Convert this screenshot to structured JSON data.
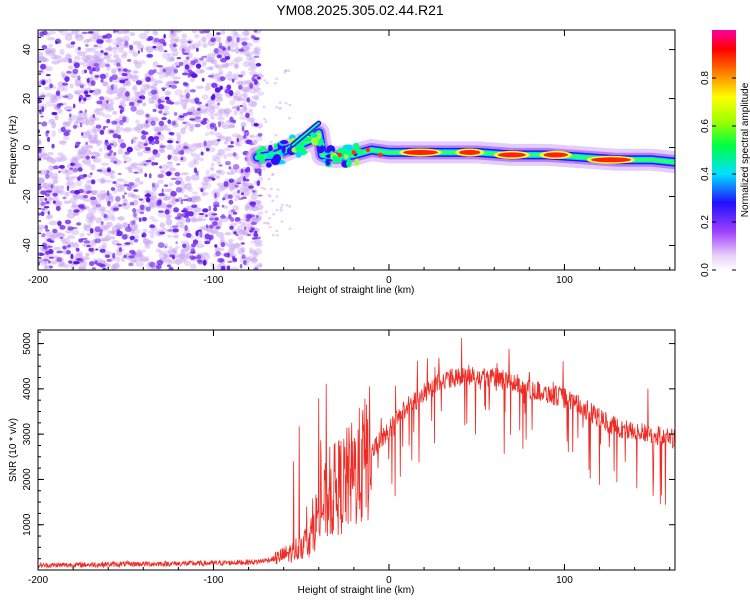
{
  "title": "YM08.2025.305.02.44.R21",
  "colors": {
    "frame": "#000000",
    "snr_line": "#ee2b24",
    "speckle": "#7a2cf0",
    "background": "#ffffff"
  },
  "chart_data": [
    {
      "type": "heatmap",
      "name": "spectrogram",
      "xlabel": "Height of straight line (km)",
      "ylabel": "Frequency (Hz)",
      "xlim": [
        -200,
        163
      ],
      "ylim": [
        -50,
        48
      ],
      "x_ticks": [
        -200,
        -100,
        0,
        100
      ],
      "x_tick_labels": [
        "-200",
        "-100",
        "0",
        "100"
      ],
      "y_ticks": [
        -40,
        -20,
        0,
        20,
        40
      ],
      "y_tick_labels": [
        "-40",
        "-20",
        "0",
        "20",
        "40"
      ],
      "noise_region_km": [
        -200,
        -73
      ],
      "signal_trace": [
        {
          "x": -75,
          "y": -4
        },
        {
          "x": -65,
          "y": -3
        },
        {
          "x": -55,
          "y": 0
        },
        {
          "x": -45,
          "y": 3
        },
        {
          "x": -40,
          "y": 6
        },
        {
          "x": -38,
          "y": -3
        },
        {
          "x": -30,
          "y": -4
        },
        {
          "x": -20,
          "y": -3
        },
        {
          "x": -10,
          "y": -1
        },
        {
          "x": 0,
          "y": -2
        },
        {
          "x": 10,
          "y": -2
        },
        {
          "x": 30,
          "y": -2
        },
        {
          "x": 50,
          "y": -2
        },
        {
          "x": 70,
          "y": -3
        },
        {
          "x": 90,
          "y": -3
        },
        {
          "x": 110,
          "y": -4
        },
        {
          "x": 130,
          "y": -5
        },
        {
          "x": 150,
          "y": -5
        },
        {
          "x": 163,
          "y": -6
        }
      ],
      "colorbar": {
        "label": "Normalized spectral amplitude",
        "range": [
          0,
          1
        ],
        "ticks": [
          0.0,
          0.2,
          0.4,
          0.6,
          0.8
        ],
        "tick_labels": [
          "0.0",
          "0.2",
          "0.4",
          "0.6",
          "0.8"
        ]
      }
    },
    {
      "type": "line",
      "name": "snr",
      "xlabel": "Height of straight line (km)",
      "ylabel": "SNR (10 * v/v)",
      "xlim": [
        -200,
        163
      ],
      "ylim": [
        0,
        5300
      ],
      "x_ticks": [
        -200,
        -100,
        0,
        100
      ],
      "x_tick_labels": [
        "-200",
        "-100",
        "0",
        "100"
      ],
      "y_ticks": [
        1000,
        2000,
        3000,
        4000,
        5000
      ],
      "y_tick_labels": [
        "1000",
        "2000",
        "3000",
        "4000",
        "5000"
      ],
      "series": [
        {
          "name": "SNR envelope",
          "x": [
            -200,
            -150,
            -100,
            -75,
            -65,
            -55,
            -45,
            -40,
            -30,
            -20,
            -10,
            0,
            10,
            20,
            30,
            40,
            50,
            60,
            70,
            80,
            90,
            100,
            110,
            120,
            130,
            140,
            150,
            163
          ],
          "values": [
            100,
            130,
            150,
            180,
            250,
            400,
            700,
            1300,
            1800,
            2100,
            2600,
            3100,
            3600,
            3900,
            4200,
            4250,
            4300,
            4250,
            4150,
            4000,
            3900,
            3800,
            3600,
            3350,
            3150,
            3050,
            3000,
            2900
          ]
        }
      ]
    }
  ]
}
